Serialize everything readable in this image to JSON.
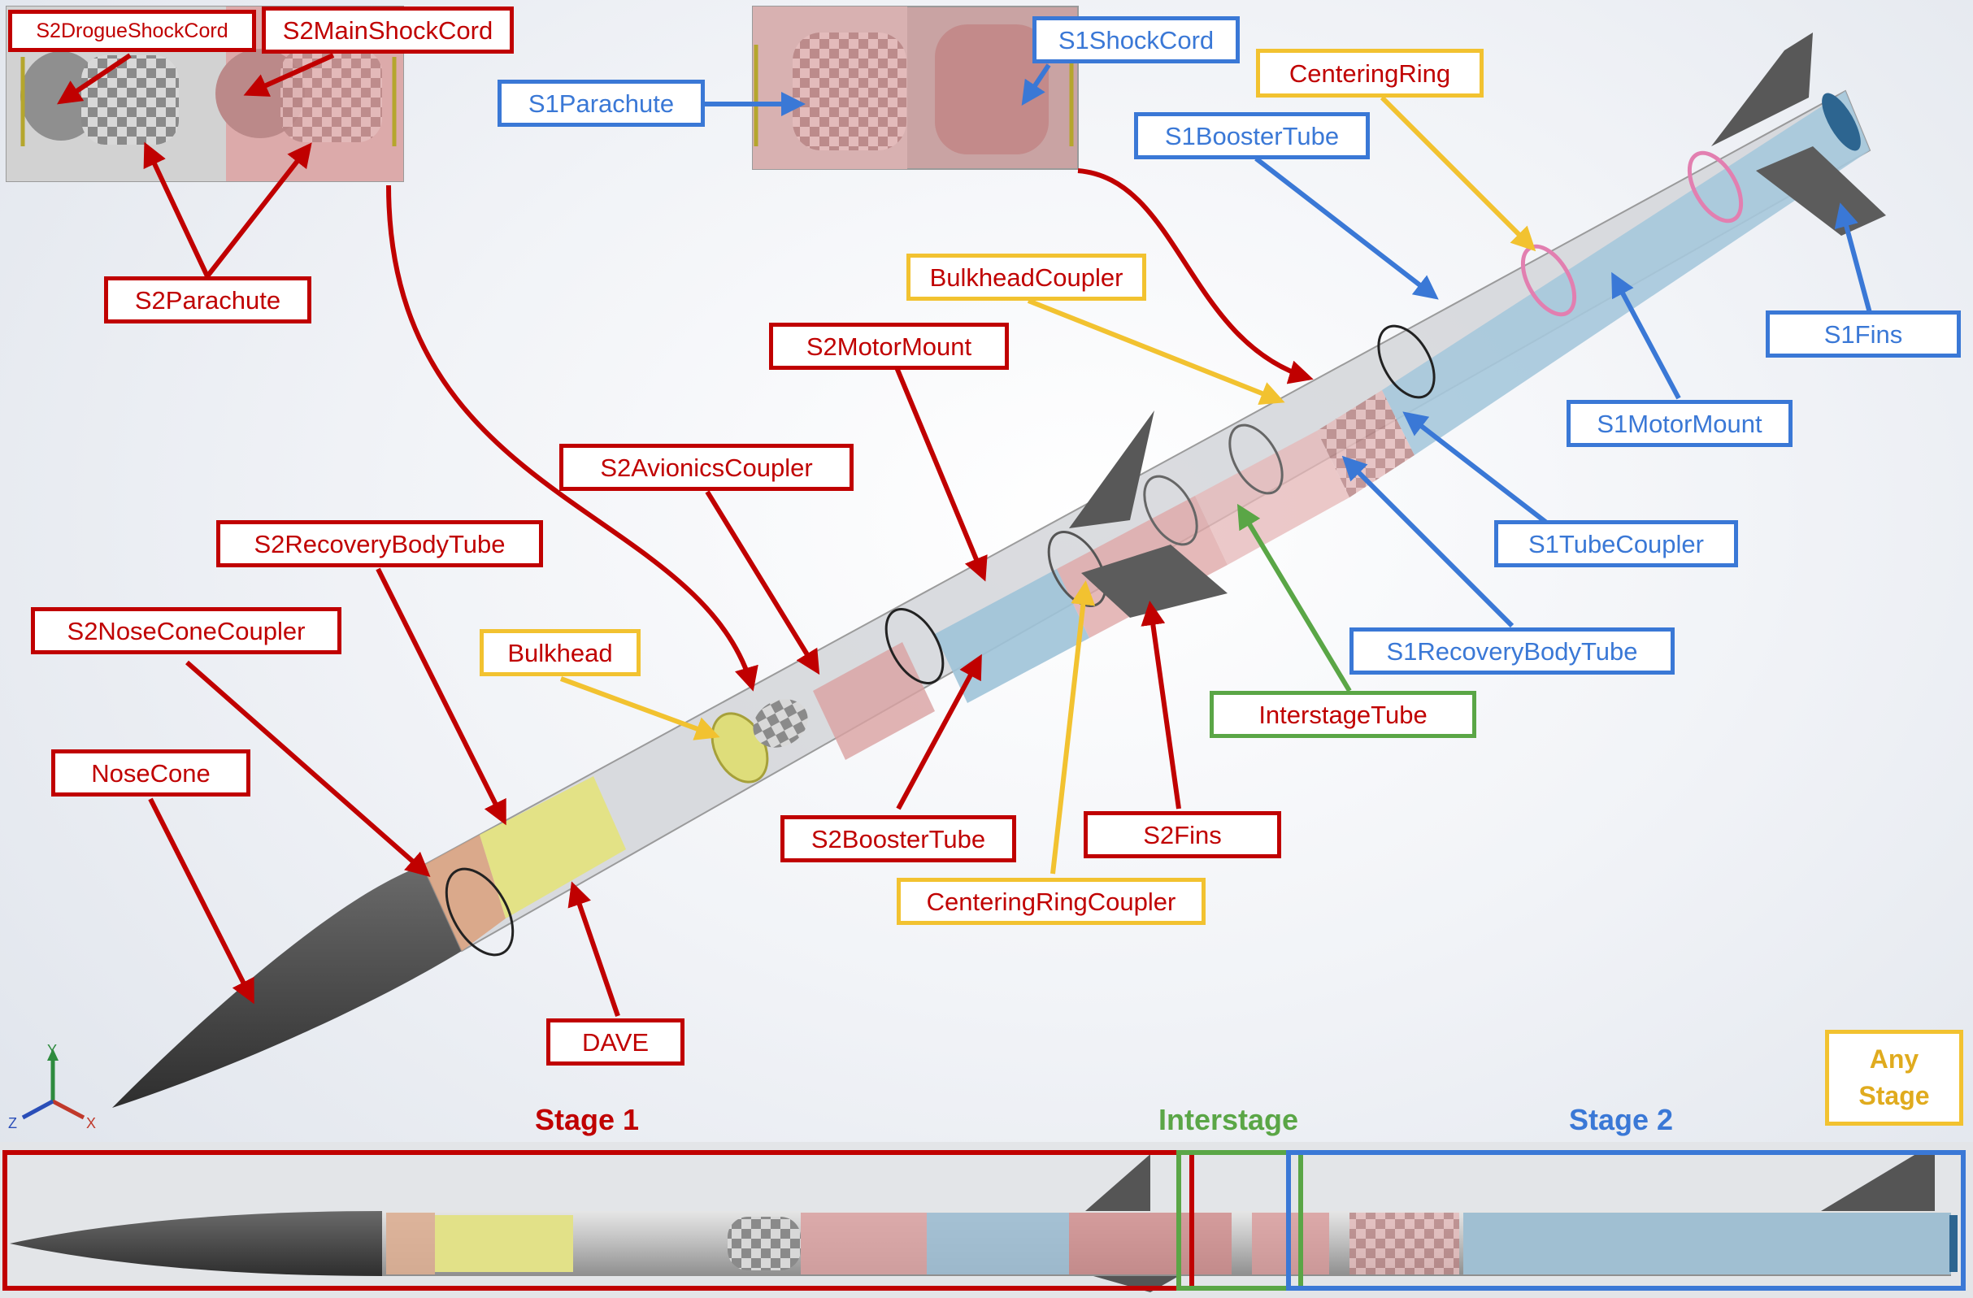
{
  "labels": {
    "s2_drogue_shock_cord": "S2DrogueShockCord",
    "s2_main_shock_cord": "S2MainShockCord",
    "s2_parachute": "S2Parachute",
    "s1_parachute": "S1Parachute",
    "s1_shock_cord": "S1ShockCord",
    "centering_ring": "CenteringRing",
    "s1_booster_tube": "S1BoosterTube",
    "s1_fins": "S1Fins",
    "s1_motor_mount": "S1MotorMount",
    "s1_tube_coupler": "S1TubeCoupler",
    "s1_recovery_body_tube": "S1RecoveryBodyTube",
    "interstage_tube": "InterstageTube",
    "bulkhead_coupler": "BulkheadCoupler",
    "s2_motor_mount": "S2MotorMount",
    "s2_avionics_coupler": "S2AvionicsCoupler",
    "s2_recovery_body_tube": "S2RecoveryBodyTube",
    "s2_nose_cone_coupler": "S2NoseConeCoupler",
    "bulkhead": "Bulkhead",
    "nose_cone": "NoseCone",
    "dave": "DAVE",
    "s2_booster_tube": "S2BoosterTube",
    "s2_fins": "S2Fins",
    "centering_ring_coupler": "CenteringRingCoupler"
  },
  "stages": {
    "stage1": "Stage 1",
    "interstage": "Interstage",
    "stage2": "Stage 2",
    "any_stage_line1": "Any",
    "any_stage_line2": "Stage"
  },
  "axes": {
    "y": "Y",
    "z": "Z",
    "x": "X"
  },
  "colors": {
    "stage1_red": "#c00000",
    "stage2_blue": "#3a78d6",
    "interstage_green": "#5aa646",
    "any_stage_yellow": "#f2c230"
  }
}
